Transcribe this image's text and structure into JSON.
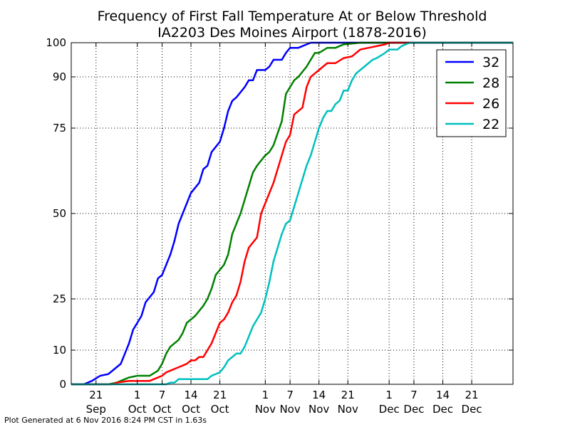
{
  "chart_data": {
    "type": "line",
    "title": "Frequency of First Fall Temperature At or Below Threshold",
    "subtitle": "IA2203 Des Moines Airport (1878-2016)",
    "xlim": [
      "2016-09-15",
      "2016-12-31"
    ],
    "ylim": [
      0,
      100
    ],
    "y_ticks": [
      0,
      10,
      25,
      50,
      75,
      90,
      100
    ],
    "x_ticks": [
      {
        "date": "2016-09-21",
        "day": "21",
        "month": "Sep"
      },
      {
        "date": "2016-10-01",
        "day": "1",
        "month": "Oct"
      },
      {
        "date": "2016-10-07",
        "day": "7",
        "month": "Oct"
      },
      {
        "date": "2016-10-14",
        "day": "14",
        "month": "Oct"
      },
      {
        "date": "2016-10-21",
        "day": "21",
        "month": "Oct"
      },
      {
        "date": "2016-11-01",
        "day": "1",
        "month": "Nov"
      },
      {
        "date": "2016-11-07",
        "day": "7",
        "month": "Nov"
      },
      {
        "date": "2016-11-14",
        "day": "14",
        "month": "Nov"
      },
      {
        "date": "2016-11-21",
        "day": "21",
        "month": "Nov"
      },
      {
        "date": "2016-12-01",
        "day": "1",
        "month": "Dec"
      },
      {
        "date": "2016-12-07",
        "day": "7",
        "month": "Dec"
      },
      {
        "date": "2016-12-14",
        "day": "14",
        "month": "Dec"
      },
      {
        "date": "2016-12-21",
        "day": "21",
        "month": "Dec"
      }
    ],
    "grid": true,
    "legend_position": "top-right",
    "series": [
      {
        "name": "32",
        "color": "#0000ff",
        "points": [
          [
            "2016-09-15",
            0
          ],
          [
            "2016-09-18",
            0
          ],
          [
            "2016-09-19",
            0.5
          ],
          [
            "2016-09-20",
            1
          ],
          [
            "2016-09-22",
            2.5
          ],
          [
            "2016-09-24",
            3
          ],
          [
            "2016-09-26",
            5
          ],
          [
            "2016-09-27",
            6
          ],
          [
            "2016-09-28",
            9
          ],
          [
            "2016-09-29",
            12
          ],
          [
            "2016-09-30",
            16
          ],
          [
            "2016-10-02",
            20
          ],
          [
            "2016-10-03",
            24
          ],
          [
            "2016-10-05",
            27
          ],
          [
            "2016-10-06",
            31
          ],
          [
            "2016-10-07",
            32
          ],
          [
            "2016-10-09",
            38
          ],
          [
            "2016-10-10",
            42
          ],
          [
            "2016-10-11",
            47
          ],
          [
            "2016-10-13",
            53
          ],
          [
            "2016-10-14",
            56
          ],
          [
            "2016-10-16",
            59
          ],
          [
            "2016-10-17",
            63
          ],
          [
            "2016-10-18",
            64
          ],
          [
            "2016-10-19",
            68
          ],
          [
            "2016-10-21",
            71
          ],
          [
            "2016-10-22",
            75
          ],
          [
            "2016-10-23",
            80
          ],
          [
            "2016-10-24",
            83
          ],
          [
            "2016-10-25",
            84
          ],
          [
            "2016-10-27",
            87
          ],
          [
            "2016-10-28",
            89
          ],
          [
            "2016-10-29",
            89
          ],
          [
            "2016-10-30",
            92
          ],
          [
            "2016-11-01",
            92
          ],
          [
            "2016-11-02",
            93
          ],
          [
            "2016-11-03",
            95
          ],
          [
            "2016-11-05",
            95
          ],
          [
            "2016-11-06",
            97
          ],
          [
            "2016-11-07",
            98.5
          ],
          [
            "2016-11-09",
            98.5
          ],
          [
            "2016-11-10",
            99
          ],
          [
            "2016-11-11",
            99.5
          ],
          [
            "2016-11-12",
            100
          ],
          [
            "2016-12-31",
            100
          ]
        ]
      },
      {
        "name": "28",
        "color": "#008000",
        "points": [
          [
            "2016-09-15",
            0
          ],
          [
            "2016-09-24",
            0
          ],
          [
            "2016-09-26",
            0.5
          ],
          [
            "2016-09-27",
            1
          ],
          [
            "2016-09-28",
            1.5
          ],
          [
            "2016-09-29",
            2
          ],
          [
            "2016-10-01",
            2.5
          ],
          [
            "2016-10-04",
            2.5
          ],
          [
            "2016-10-06",
            4
          ],
          [
            "2016-10-07",
            6
          ],
          [
            "2016-10-08",
            9
          ],
          [
            "2016-10-09",
            11
          ],
          [
            "2016-10-11",
            13
          ],
          [
            "2016-10-12",
            15
          ],
          [
            "2016-10-13",
            18
          ],
          [
            "2016-10-15",
            20
          ],
          [
            "2016-10-17",
            23
          ],
          [
            "2016-10-18",
            25
          ],
          [
            "2016-10-19",
            28
          ],
          [
            "2016-10-20",
            32
          ],
          [
            "2016-10-22",
            35
          ],
          [
            "2016-10-23",
            38
          ],
          [
            "2016-10-24",
            44
          ],
          [
            "2016-10-26",
            50
          ],
          [
            "2016-10-27",
            54
          ],
          [
            "2016-10-28",
            58
          ],
          [
            "2016-10-29",
            62
          ],
          [
            "2016-10-30",
            64
          ],
          [
            "2016-11-01",
            67
          ],
          [
            "2016-11-02",
            68
          ],
          [
            "2016-11-03",
            70
          ],
          [
            "2016-11-05",
            77
          ],
          [
            "2016-11-06",
            85
          ],
          [
            "2016-11-07",
            87
          ],
          [
            "2016-11-08",
            89
          ],
          [
            "2016-11-09",
            90
          ],
          [
            "2016-11-11",
            93
          ],
          [
            "2016-11-12",
            95
          ],
          [
            "2016-11-13",
            97
          ],
          [
            "2016-11-14",
            97
          ],
          [
            "2016-11-16",
            98.5
          ],
          [
            "2016-11-18",
            98.5
          ],
          [
            "2016-11-20",
            99.5
          ],
          [
            "2016-11-24",
            100
          ],
          [
            "2016-12-31",
            100
          ]
        ]
      },
      {
        "name": "26",
        "color": "#ff0000",
        "points": [
          [
            "2016-09-15",
            0
          ],
          [
            "2016-09-25",
            0
          ],
          [
            "2016-09-26",
            0.5
          ],
          [
            "2016-09-29",
            1
          ],
          [
            "2016-10-04",
            1
          ],
          [
            "2016-10-05",
            1.5
          ],
          [
            "2016-10-07",
            2.5
          ],
          [
            "2016-10-08",
            3.5
          ],
          [
            "2016-10-09",
            4
          ],
          [
            "2016-10-11",
            5
          ],
          [
            "2016-10-13",
            6
          ],
          [
            "2016-10-14",
            7
          ],
          [
            "2016-10-15",
            7
          ],
          [
            "2016-10-16",
            8
          ],
          [
            "2016-10-17",
            8
          ],
          [
            "2016-10-18",
            10
          ],
          [
            "2016-10-19",
            12
          ],
          [
            "2016-10-20",
            15
          ],
          [
            "2016-10-21",
            18
          ],
          [
            "2016-10-22",
            19
          ],
          [
            "2016-10-23",
            21
          ],
          [
            "2016-10-24",
            24
          ],
          [
            "2016-10-25",
            26
          ],
          [
            "2016-10-26",
            30
          ],
          [
            "2016-10-27",
            36
          ],
          [
            "2016-10-28",
            40
          ],
          [
            "2016-10-30",
            43
          ],
          [
            "2016-10-31",
            50
          ],
          [
            "2016-11-01",
            53
          ],
          [
            "2016-11-02",
            56
          ],
          [
            "2016-11-03",
            59
          ],
          [
            "2016-11-04",
            63
          ],
          [
            "2016-11-05",
            67
          ],
          [
            "2016-11-06",
            71
          ],
          [
            "2016-11-07",
            73
          ],
          [
            "2016-11-08",
            79
          ],
          [
            "2016-11-10",
            81
          ],
          [
            "2016-11-11",
            87
          ],
          [
            "2016-11-12",
            90
          ],
          [
            "2016-11-13",
            91
          ],
          [
            "2016-11-14",
            92
          ],
          [
            "2016-11-16",
            94
          ],
          [
            "2016-11-18",
            94
          ],
          [
            "2016-11-20",
            95.5
          ],
          [
            "2016-11-22",
            96
          ],
          [
            "2016-11-24",
            98
          ],
          [
            "2016-11-26",
            98.5
          ],
          [
            "2016-11-28",
            99
          ],
          [
            "2016-11-30",
            99.5
          ],
          [
            "2016-12-01",
            100
          ],
          [
            "2016-12-31",
            100
          ]
        ]
      },
      {
        "name": "22",
        "color": "#00bfbf",
        "points": [
          [
            "2016-09-15",
            0
          ],
          [
            "2016-10-08",
            0
          ],
          [
            "2016-10-09",
            0.5
          ],
          [
            "2016-10-10",
            0.5
          ],
          [
            "2016-10-11",
            1.5
          ],
          [
            "2016-10-13",
            1.5
          ],
          [
            "2016-10-18",
            1.5
          ],
          [
            "2016-10-19",
            2.5
          ],
          [
            "2016-10-20",
            3
          ],
          [
            "2016-10-21",
            3.5
          ],
          [
            "2016-10-22",
            5
          ],
          [
            "2016-10-23",
            7
          ],
          [
            "2016-10-24",
            8
          ],
          [
            "2016-10-25",
            9
          ],
          [
            "2016-10-26",
            9
          ],
          [
            "2016-10-27",
            11
          ],
          [
            "2016-10-28",
            14
          ],
          [
            "2016-10-29",
            17
          ],
          [
            "2016-10-31",
            21
          ],
          [
            "2016-11-01",
            25
          ],
          [
            "2016-11-02",
            30
          ],
          [
            "2016-11-03",
            36
          ],
          [
            "2016-11-04",
            40
          ],
          [
            "2016-11-05",
            44
          ],
          [
            "2016-11-06",
            47
          ],
          [
            "2016-11-07",
            48
          ],
          [
            "2016-11-08",
            52
          ],
          [
            "2016-11-09",
            56
          ],
          [
            "2016-11-10",
            60
          ],
          [
            "2016-11-11",
            64
          ],
          [
            "2016-11-12",
            67
          ],
          [
            "2016-11-13",
            71
          ],
          [
            "2016-11-14",
            75
          ],
          [
            "2016-11-15",
            78
          ],
          [
            "2016-11-16",
            80
          ],
          [
            "2016-11-17",
            80
          ],
          [
            "2016-11-18",
            82
          ],
          [
            "2016-11-19",
            83
          ],
          [
            "2016-11-20",
            86
          ],
          [
            "2016-11-21",
            86
          ],
          [
            "2016-11-22",
            89
          ],
          [
            "2016-11-23",
            91
          ],
          [
            "2016-11-24",
            92
          ],
          [
            "2016-11-25",
            93
          ],
          [
            "2016-11-27",
            95
          ],
          [
            "2016-11-28",
            95.5
          ],
          [
            "2016-11-30",
            97
          ],
          [
            "2016-12-01",
            98
          ],
          [
            "2016-12-02",
            98
          ],
          [
            "2016-12-03",
            98
          ],
          [
            "2016-12-04",
            99
          ],
          [
            "2016-12-05",
            99.5
          ],
          [
            "2016-12-06",
            100
          ],
          [
            "2016-12-31",
            100
          ]
        ]
      }
    ]
  },
  "footer": "Plot Generated at 6 Nov 2016 8:24 PM CST in 1.63s"
}
